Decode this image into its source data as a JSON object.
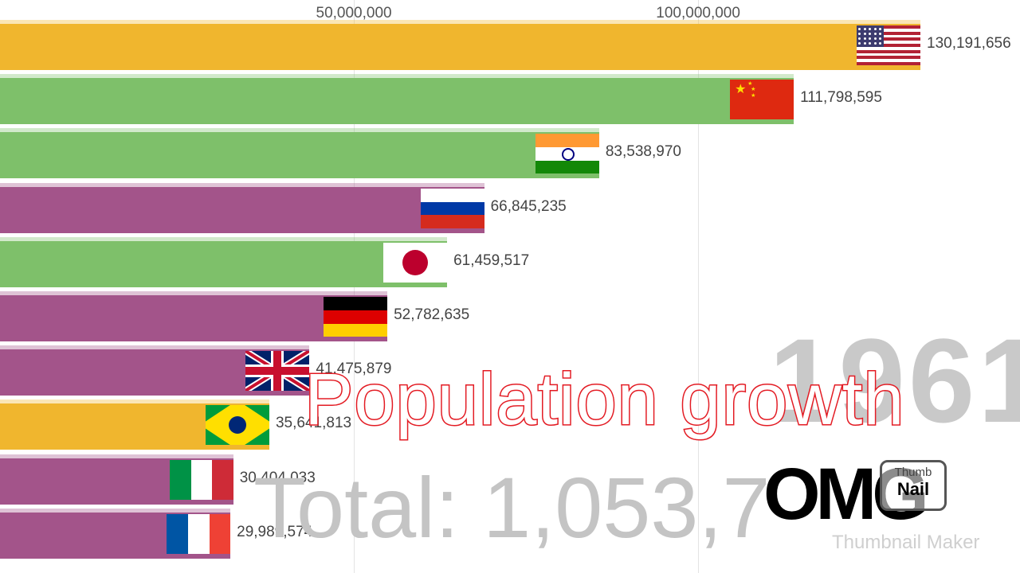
{
  "chart_data": {
    "type": "bar",
    "orientation": "horizontal",
    "categories": [
      "United States",
      "China",
      "India",
      "Russia",
      "Japan",
      "Germany",
      "United Kingdom",
      "Brazil",
      "Italy",
      "France"
    ],
    "values": [
      130191656,
      111798595,
      83538970,
      66845235,
      61459517,
      52782635,
      41475879,
      35641813,
      30404033,
      29989574
    ],
    "value_labels": [
      "130,191,656",
      "111,798,595",
      "83,538,970",
      "66,845,235",
      "61,459,517",
      "52,782,635",
      "41,475,879",
      "35,641,813",
      "30,404,033",
      "29,989,574"
    ],
    "bar_colors": [
      "#f0b62e",
      "#7ec06a",
      "#7ec06a",
      "#a3548a",
      "#7ec06a",
      "#a3548a",
      "#a3548a",
      "#f0b62e",
      "#a3548a",
      "#a3548a"
    ],
    "flags": [
      "usa",
      "china",
      "india",
      "russia",
      "japan",
      "germany",
      "uk",
      "brazil",
      "italy",
      "france"
    ],
    "x_ticks": [
      50000000,
      100000000
    ],
    "x_tick_labels": [
      "50,000,000",
      "100,000,000"
    ],
    "year": "1961",
    "total_label": "Total: 1,053,7",
    "grid": true
  },
  "overlay": {
    "title": "Population growth",
    "logo_text": "OMG",
    "badge_line1": "Thumb",
    "badge_line2": "Nail",
    "watermark": "Thumbnail Maker"
  }
}
